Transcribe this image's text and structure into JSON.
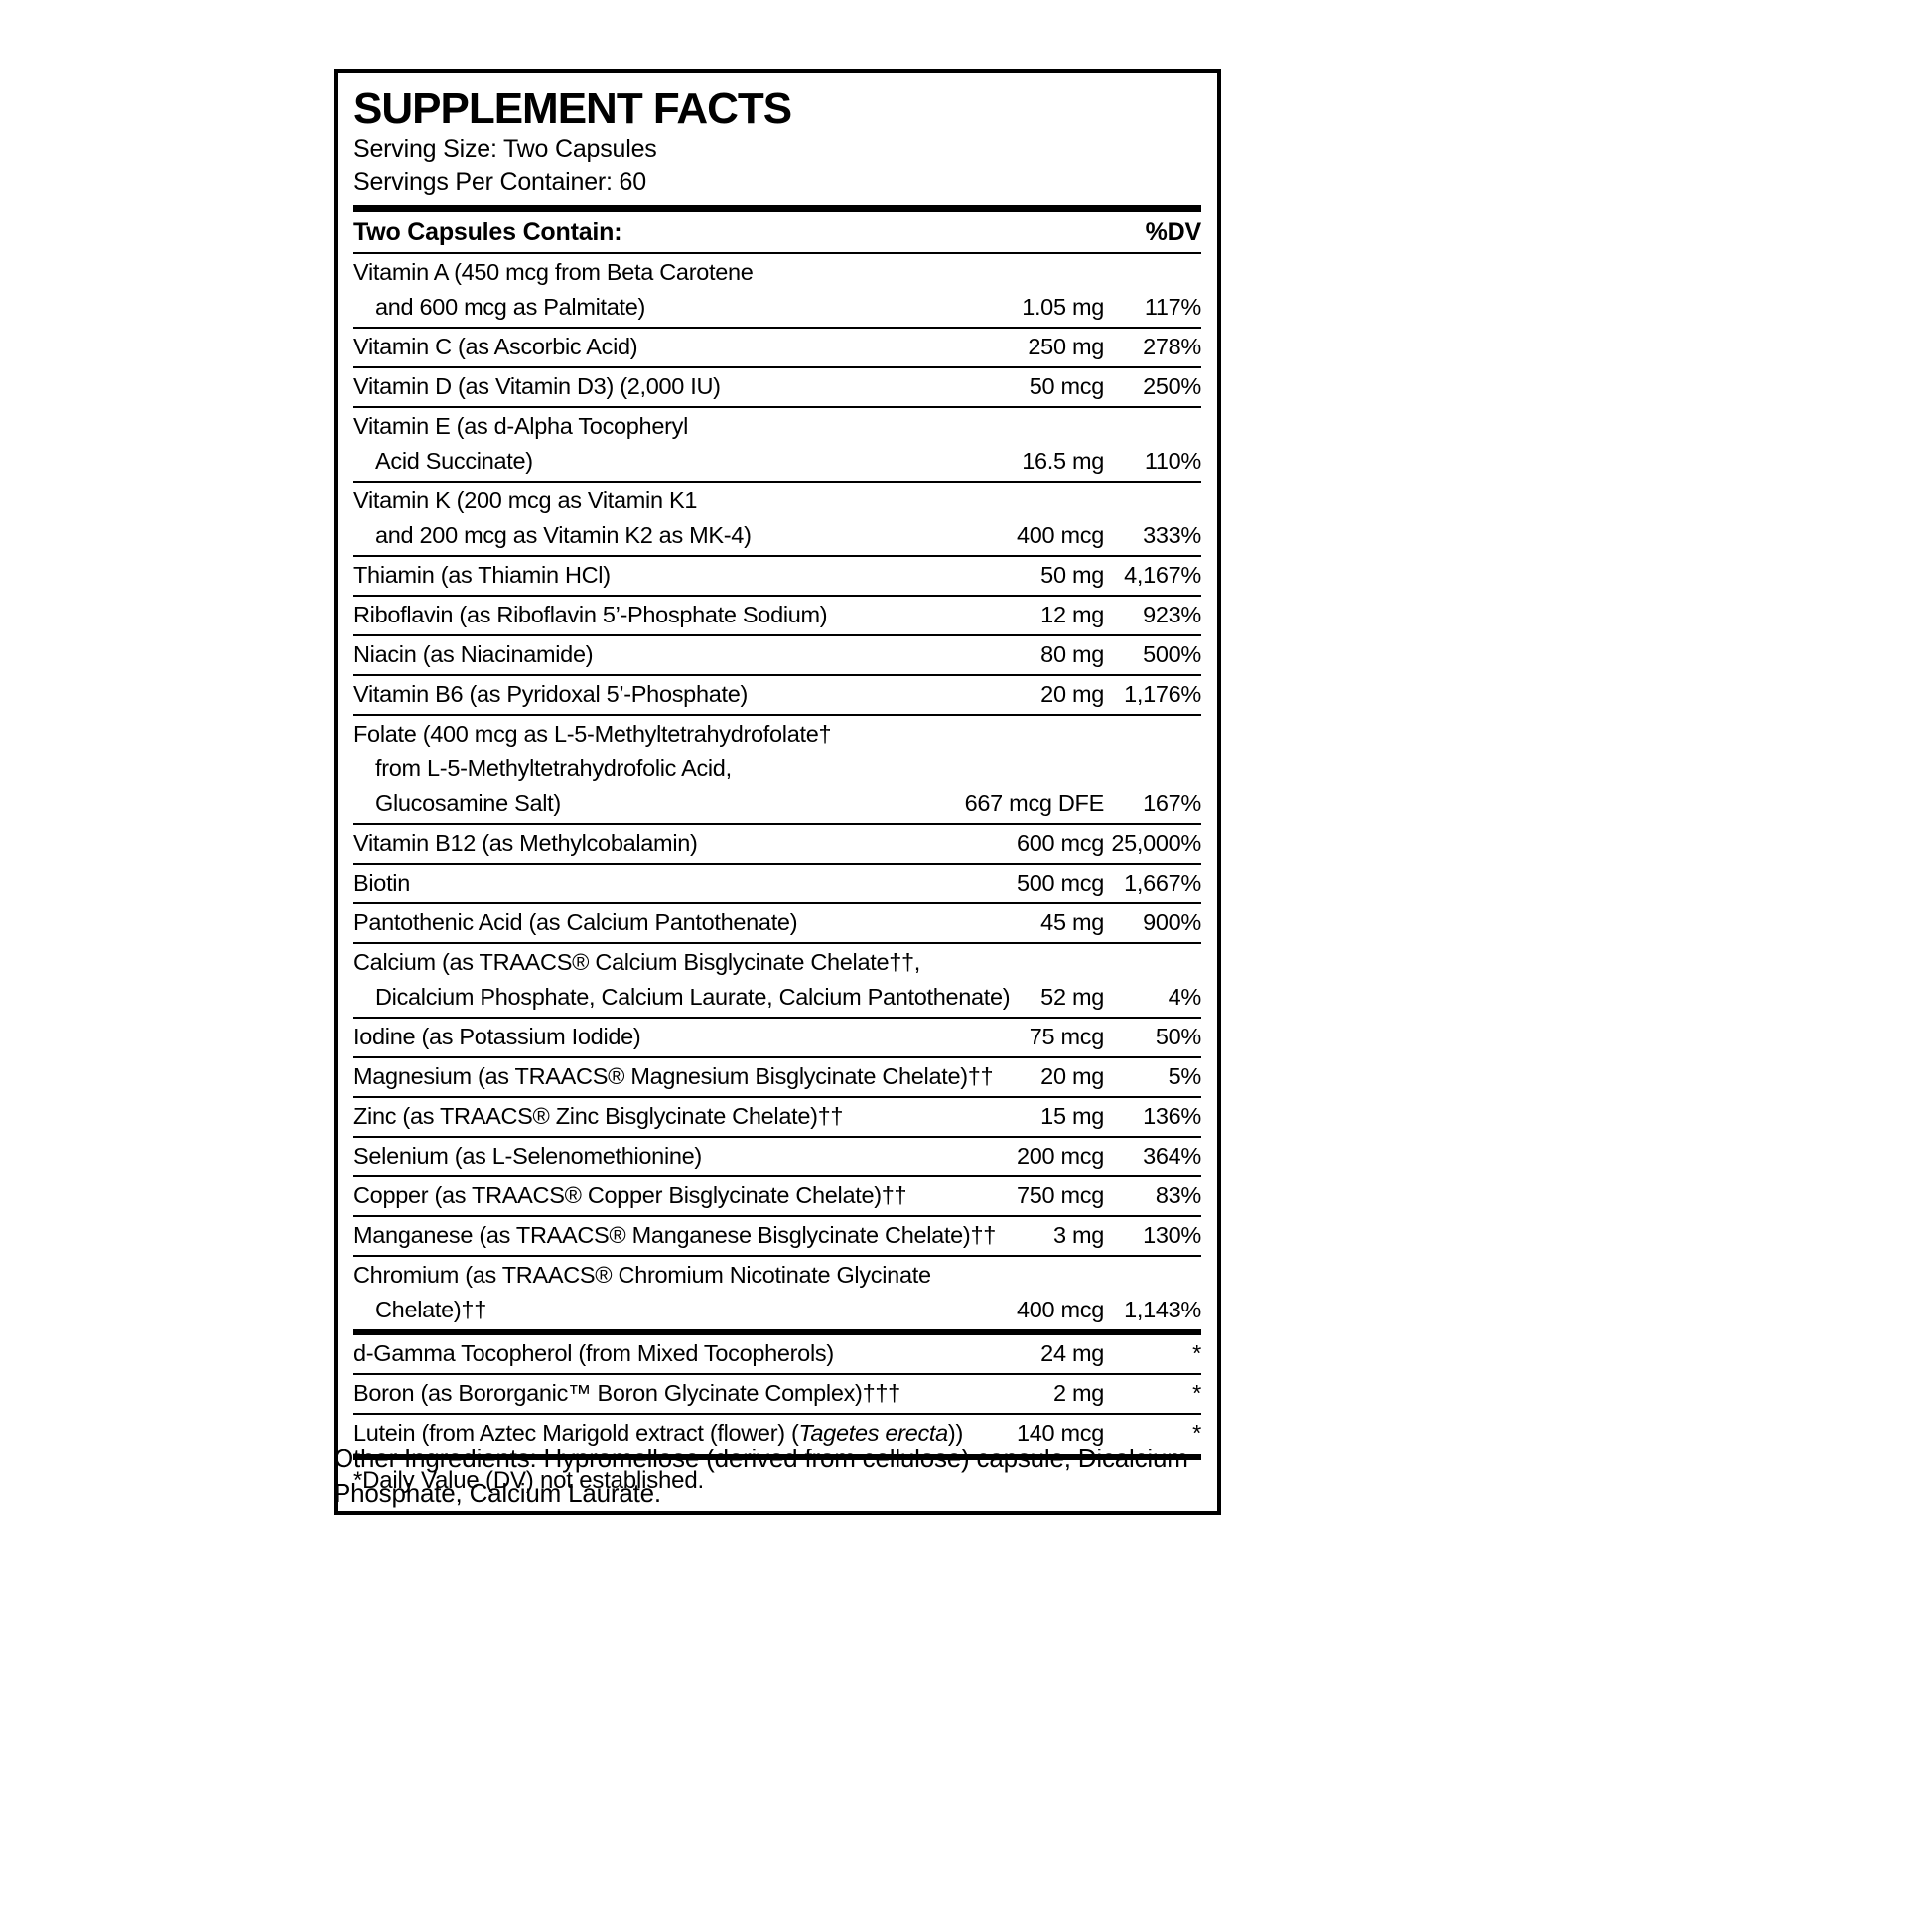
{
  "panel": {
    "title": "SUPPLEMENT FACTS",
    "serving_size": "Serving Size: Two Capsules",
    "servings_per_container": "Servings Per Container: 60",
    "header": {
      "left": "Two Capsules Contain:",
      "right": "%DV"
    },
    "rows": [
      {
        "lines": [
          "Vitamin A (450 mcg from Beta Carotene",
          "and 600 mcg as Palmitate)"
        ],
        "amount": "1.05 mg",
        "dv": "117%"
      },
      {
        "lines": [
          "Vitamin C (as Ascorbic Acid)"
        ],
        "amount": "250 mg",
        "dv": "278%"
      },
      {
        "lines": [
          "Vitamin D (as Vitamin D3) (2,000 IU)"
        ],
        "amount": "50 mcg",
        "dv": "250%"
      },
      {
        "lines": [
          "Vitamin E (as d-Alpha Tocopheryl",
          "Acid Succinate)"
        ],
        "amount": "16.5 mg",
        "dv": "110%"
      },
      {
        "lines": [
          "Vitamin K (200 mcg as Vitamin K1",
          "and 200 mcg as Vitamin K2 as MK-4)"
        ],
        "amount": "400 mcg",
        "dv": "333%"
      },
      {
        "lines": [
          "Thiamin (as Thiamin HCl)"
        ],
        "amount": "50 mg",
        "dv": "4,167%"
      },
      {
        "lines": [
          "Riboflavin (as Riboflavin 5’-Phosphate Sodium)"
        ],
        "amount": "12 mg",
        "dv": "923%"
      },
      {
        "lines": [
          "Niacin (as Niacinamide)"
        ],
        "amount": "80 mg",
        "dv": "500%"
      },
      {
        "lines": [
          "Vitamin B6 (as Pyridoxal 5’-Phosphate)"
        ],
        "amount": "20 mg",
        "dv": "1,176%"
      },
      {
        "lines": [
          "Folate (400 mcg as L-5-Methyltetrahydrofolate†",
          "from L-5-Methyltetrahydrofolic Acid,",
          "Glucosamine Salt)"
        ],
        "amount": "667 mcg DFE",
        "dv": "167%"
      },
      {
        "lines": [
          "Vitamin B12 (as Methylcobalamin)"
        ],
        "amount": "600 mcg",
        "dv": "25,000%"
      },
      {
        "lines": [
          "Biotin"
        ],
        "amount": "500 mcg",
        "dv": "1,667%"
      },
      {
        "lines": [
          "Pantothenic Acid (as Calcium Pantothenate)"
        ],
        "amount": "45 mg",
        "dv": "900%"
      },
      {
        "lines": [
          "Calcium (as TRAACS® Calcium Bisglycinate Chelate††,",
          "Dicalcium Phosphate, Calcium Laurate, Calcium Pantothenate)"
        ],
        "amount": "52 mg",
        "dv": "4%"
      },
      {
        "lines": [
          "Iodine (as Potassium Iodide)"
        ],
        "amount": "75 mcg",
        "dv": "50%"
      },
      {
        "lines": [
          "Magnesium (as TRAACS® Magnesium Bisglycinate Chelate)††"
        ],
        "amount": "20 mg",
        "dv": "5%"
      },
      {
        "lines": [
          "Zinc (as TRAACS® Zinc Bisglycinate Chelate)††"
        ],
        "amount": "15 mg",
        "dv": "136%"
      },
      {
        "lines": [
          "Selenium (as L-Selenomethionine)"
        ],
        "amount": "200 mcg",
        "dv": "364%"
      },
      {
        "lines": [
          "Copper (as TRAACS® Copper Bisglycinate Chelate)††"
        ],
        "amount": "750 mcg",
        "dv": "83%"
      },
      {
        "lines": [
          "Manganese (as TRAACS® Manganese Bisglycinate Chelate)††"
        ],
        "amount": "3 mg",
        "dv": "130%"
      },
      {
        "lines": [
          "Chromium (as TRAACS® Chromium Nicotinate Glycinate",
          "Chelate)††"
        ],
        "amount": "400 mcg",
        "dv": "1,143%"
      },
      {
        "sep": "medium",
        "lines": [
          "d-Gamma Tocopherol (from Mixed Tocopherols)"
        ],
        "amount": "24 mg",
        "dv": "*"
      },
      {
        "lines": [
          "Boron (as Bororganic™ Boron Glycinate Complex)†††"
        ],
        "amount": "2 mg",
        "dv": "*"
      },
      {
        "lines": [
          [
            {
              "t": "Lutein (from Aztec Marigold extract (flower) ("
            },
            {
              "t": "Tagetes erecta",
              "i": true
            },
            {
              "t": "))"
            }
          ]
        ],
        "amount": "140 mcg",
        "dv": "*"
      }
    ],
    "footnote": "*Daily Value (DV) not established."
  },
  "other_ingredients": "Other Ingredients: Hypromellose (derived from cellulose) capsule, Dicalcium Phosphate, Calcium Laurate."
}
